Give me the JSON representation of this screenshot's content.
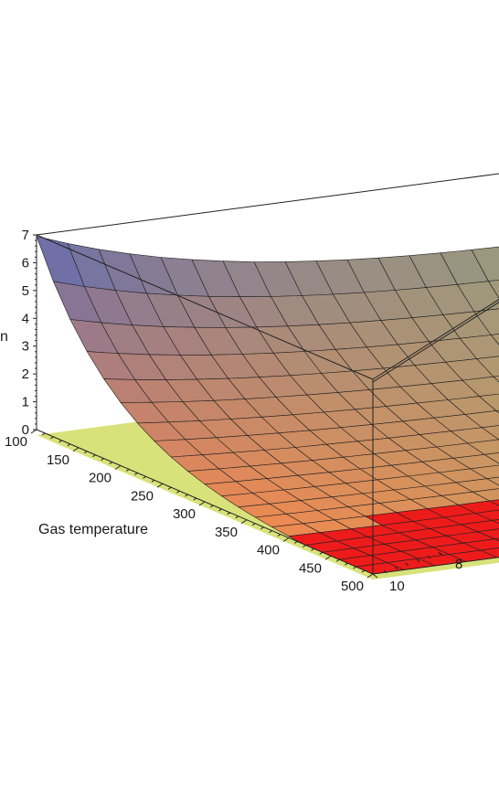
{
  "chart_data": {
    "type": "surface3d",
    "title": "",
    "xlabel": "Gas temperature",
    "ylabel": "",
    "zlabel": "n",
    "xlim": [
      100,
      500
    ],
    "ylim": [
      0,
      10
    ],
    "zlim": [
      0,
      7
    ],
    "x_ticks": [
      "100",
      "150",
      "200",
      "250",
      "300",
      "350",
      "400",
      "450",
      "500"
    ],
    "y_ticks": [
      "8",
      "10"
    ],
    "z_ticks": [
      "0",
      "1",
      "2",
      "3",
      "4",
      "5",
      "6",
      "7"
    ],
    "surface_grid": {
      "x_steps": 20,
      "y_steps": 20
    },
    "surface_description_values": {
      "max_z_at": {
        "x": 100,
        "y": 0,
        "z": 7
      },
      "flat_region_z": 0,
      "flat_region_color": "#ee1b1b"
    },
    "colors": {
      "surface_low": "#f08a4f",
      "surface_high": "#5b6bb5",
      "surface_mid": "#9aa87a",
      "flat_region": "#ee1b1b",
      "base_plane": "#d9e27a",
      "mesh": "#1f1f1f"
    }
  }
}
